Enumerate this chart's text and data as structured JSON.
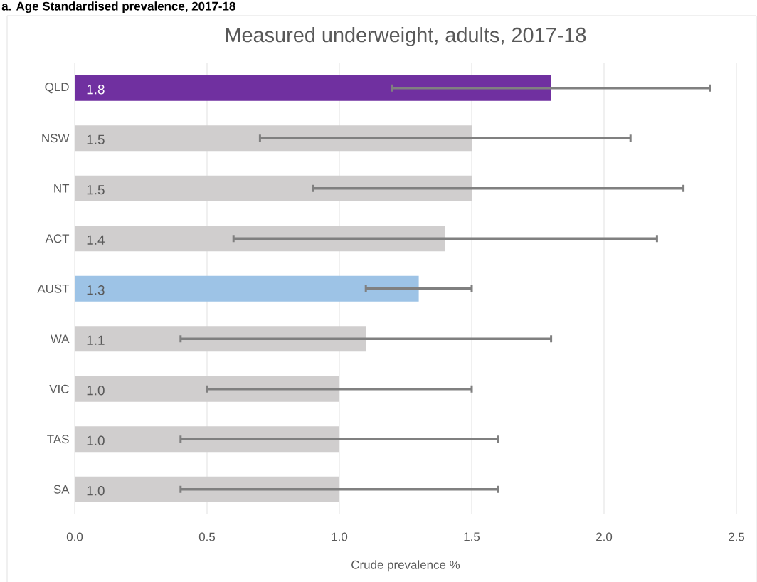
{
  "chart_data": {
    "type": "bar",
    "orientation": "horizontal",
    "title": "Measured underweight, adults, 2017-18",
    "annotations": [
      "a. Age Standardised prevalence, 2017-18"
    ],
    "xlabel": "Crude prevalence %",
    "categories": [
      "QLD",
      "NSW",
      "NT",
      "ACT",
      "AUST",
      "WA",
      "VIC",
      "TAS",
      "SA"
    ],
    "values": [
      1.8,
      1.5,
      1.5,
      1.4,
      1.3,
      1.1,
      1.0,
      1.0,
      1.0
    ],
    "value_labels": [
      "1.8",
      "1.5",
      "1.5",
      "1.4",
      "1.3",
      "1.1",
      "1.0",
      "1.0",
      "1.0"
    ],
    "colors": [
      "#7030a0",
      "#d0cece",
      "#d0cece",
      "#d0cece",
      "#9dc3e6",
      "#d0cece",
      "#d0cece",
      "#d0cece",
      "#d0cece"
    ],
    "errors": [
      [
        1.2,
        2.4
      ],
      [
        0.7,
        2.1
      ],
      [
        0.9,
        2.3
      ],
      [
        0.6,
        2.2
      ],
      [
        1.1,
        1.5
      ],
      [
        0.4,
        1.8
      ],
      [
        0.5,
        1.5
      ],
      [
        0.4,
        1.6
      ],
      [
        0.4,
        1.6
      ]
    ],
    "xlim": [
      0,
      2.5
    ],
    "xticks": [
      {
        "value": 0,
        "label": "0.0"
      },
      {
        "value": 0.5,
        "label": "0.5"
      },
      {
        "value": 1,
        "label": "1.0"
      },
      {
        "value": 1.5,
        "label": "1.5"
      },
      {
        "value": 2,
        "label": "2.0"
      },
      {
        "value": 2.5,
        "label": "2.5"
      }
    ],
    "grid": "x"
  }
}
